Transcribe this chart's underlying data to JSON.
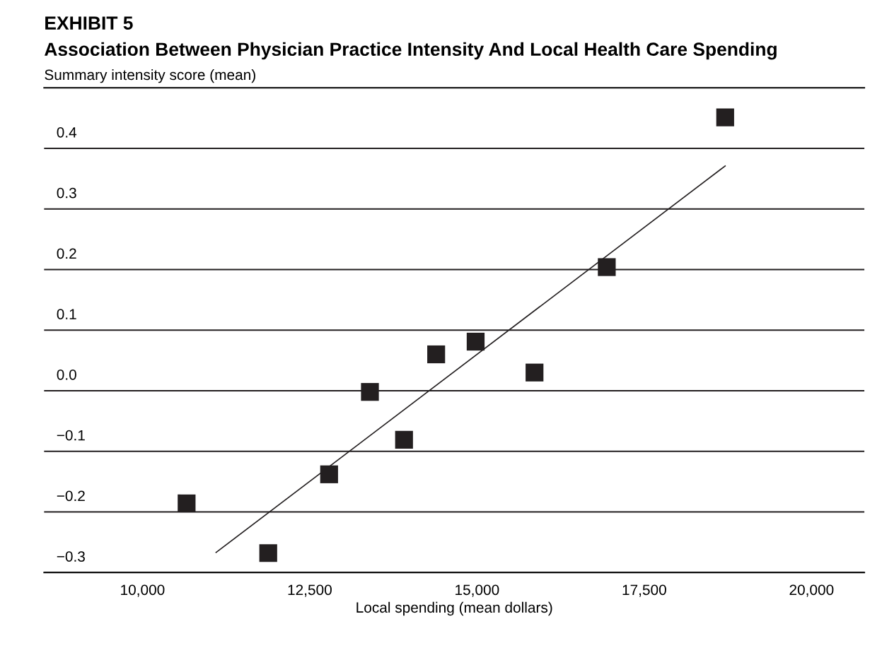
{
  "chart_data": {
    "type": "scatter",
    "title": "EXHIBIT 5",
    "subtitle": "Association Between Physician Practice Intensity And Local Health Care Spending",
    "xlabel": "Local spending (mean dollars)",
    "ylabel": "Summary intensity score (mean)",
    "series": [
      {
        "color": "#231f20",
        "marker": "square",
        "x": [
          10660,
          11880,
          12790,
          13400,
          13910,
          14390,
          14980,
          15860,
          16940,
          18710
        ],
        "values": [
          -0.186,
          -0.268,
          -0.138,
          -0.002,
          -0.081,
          0.06,
          0.081,
          0.03,
          0.204,
          0.451
        ]
      },
      {
        "type": "line",
        "color": "#231f20",
        "marker": "none",
        "line_style": "solid",
        "x": [
          11100,
          18710
        ],
        "values": [
          -0.267,
          0.371
        ]
      }
    ],
    "xlim": [
      8530,
      20790
    ],
    "ylim": [
      -0.3,
      0.5
    ],
    "xticks": [
      {
        "value": 10000,
        "label": "10,000"
      },
      {
        "value": 12500,
        "label": "12,500"
      },
      {
        "value": 15000,
        "label": "15,000"
      },
      {
        "value": 17500,
        "label": "17,500"
      },
      {
        "value": 20000,
        "label": "20,000"
      }
    ],
    "yticks": [
      {
        "value": -0.3,
        "label": "−0.3"
      },
      {
        "value": -0.2,
        "label": "−0.2"
      },
      {
        "value": -0.1,
        "label": "−0.1"
      },
      {
        "value": 0.0,
        "label": "0.0"
      },
      0.1,
      0.2,
      0.3,
      0.4
    ],
    "grid": "y"
  }
}
